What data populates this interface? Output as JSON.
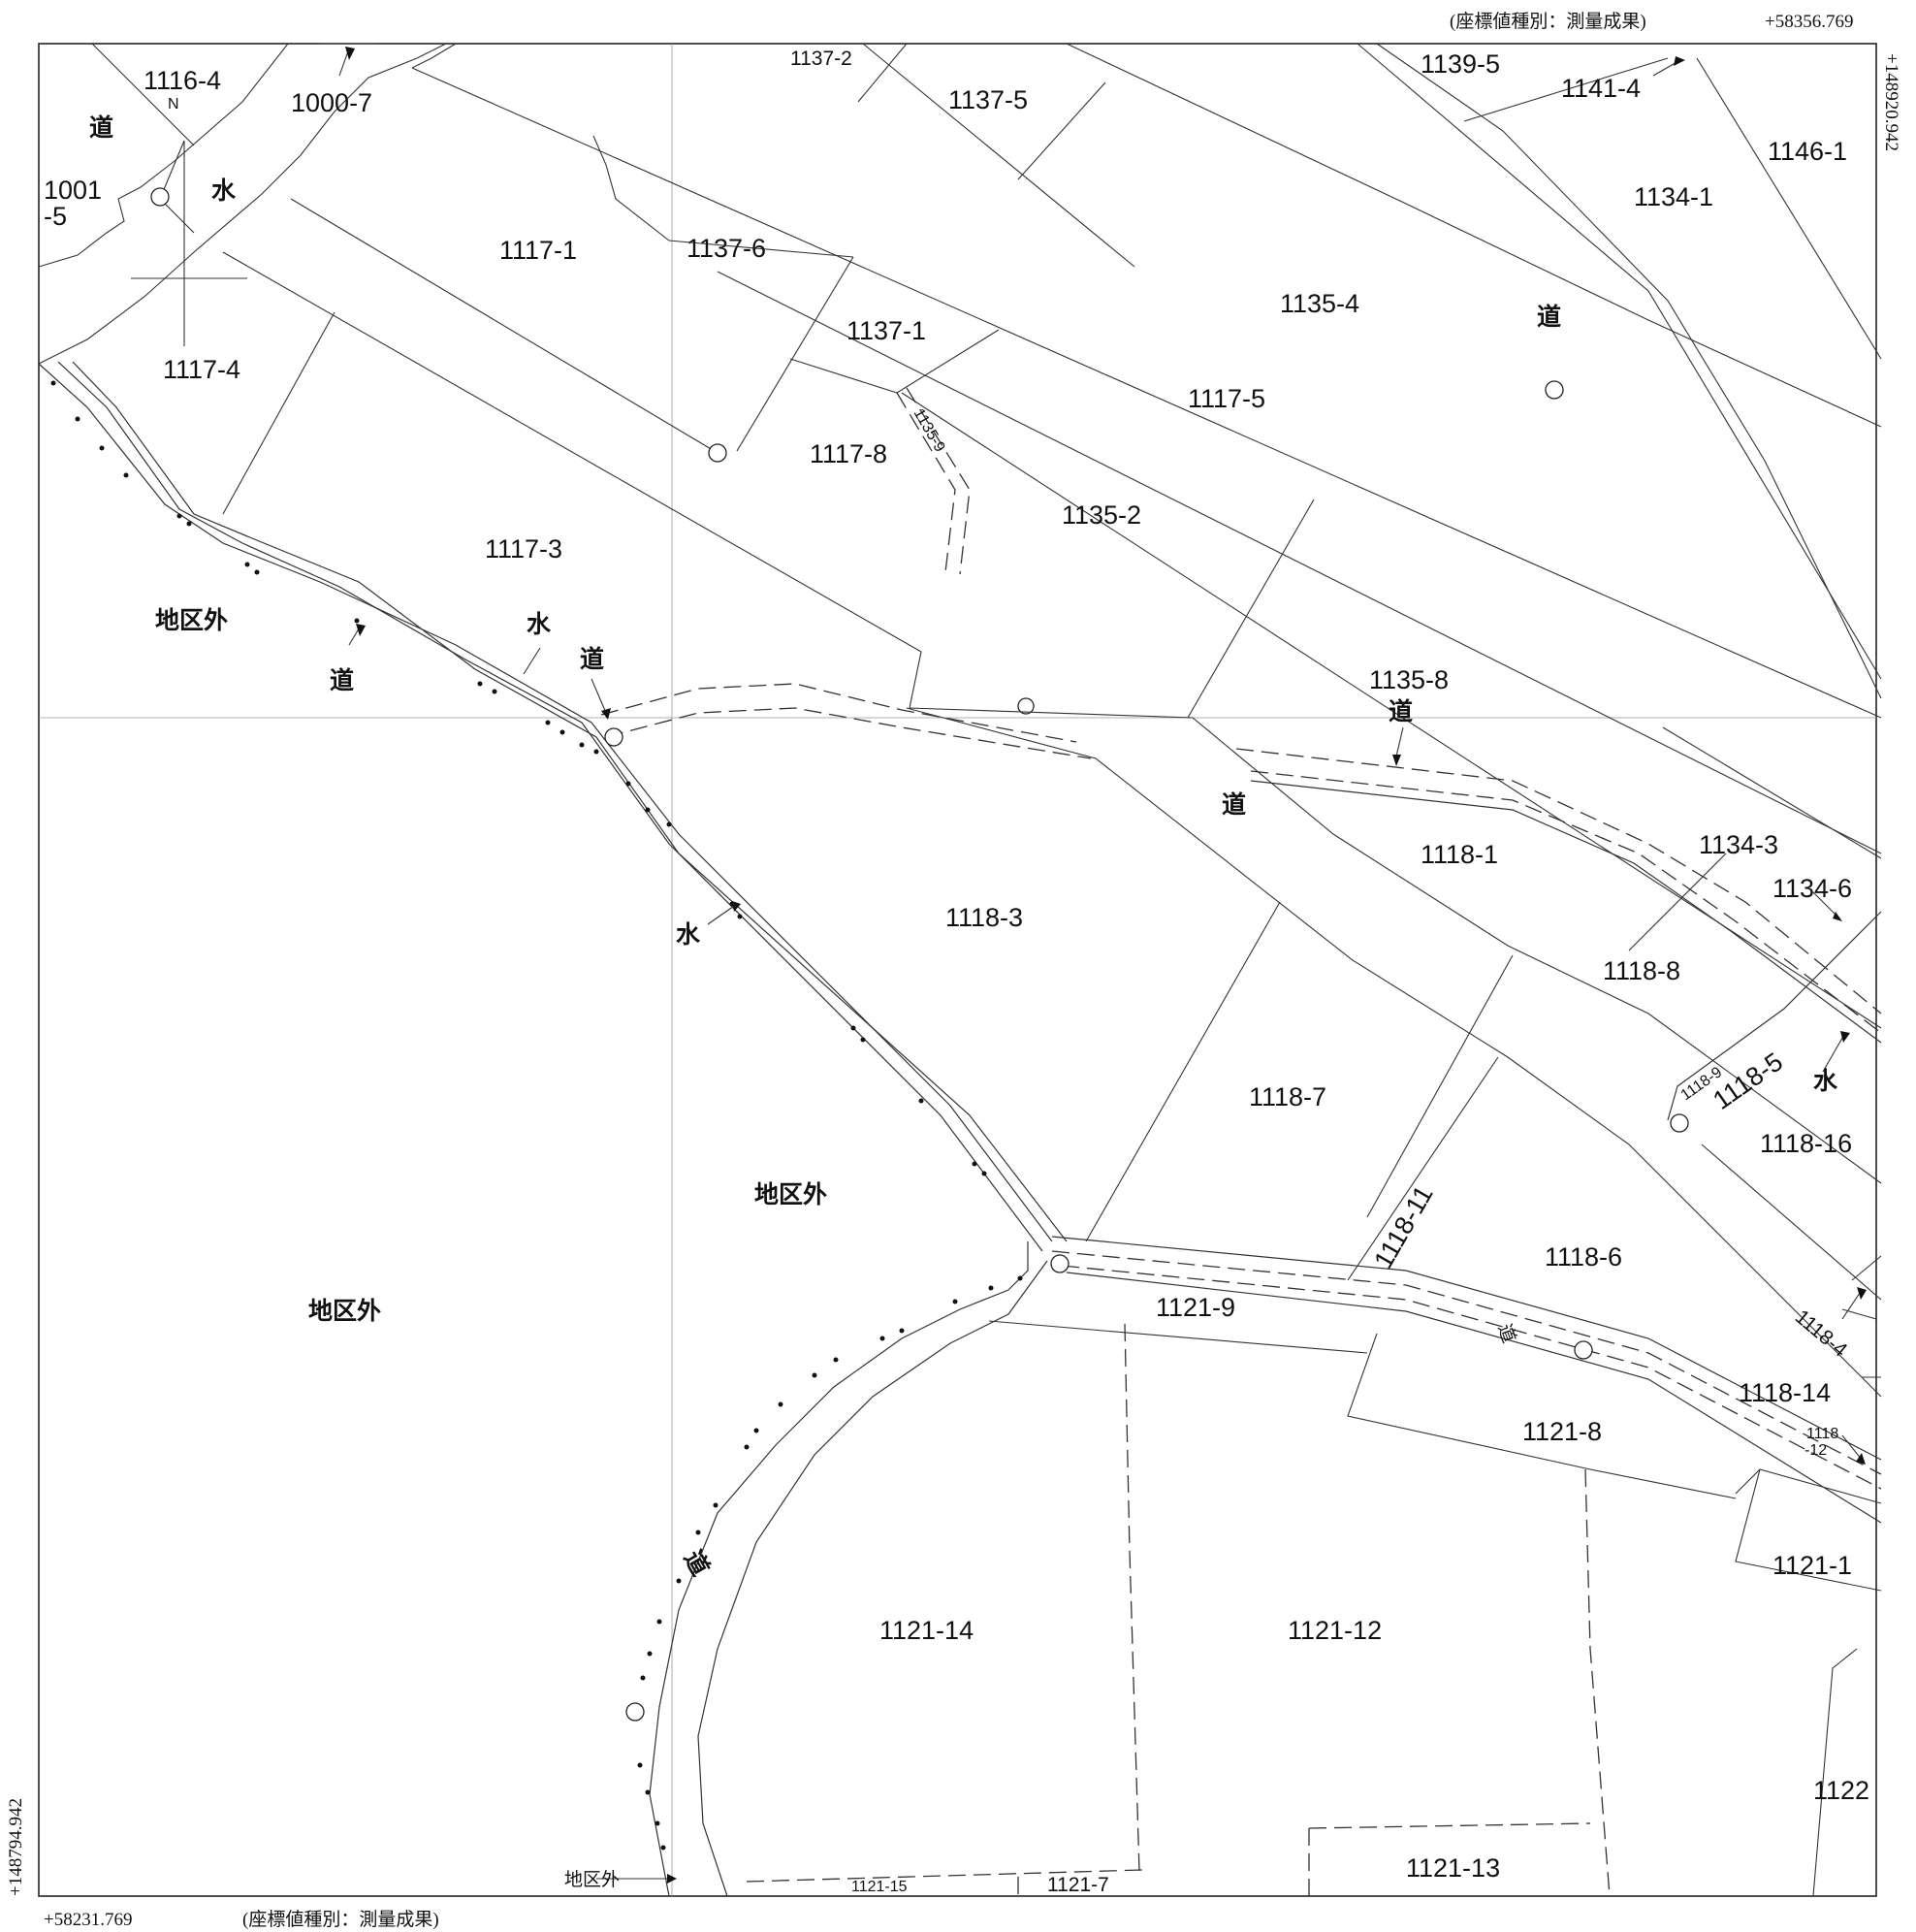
{
  "coords": {
    "top_type": "(座標値種別：測量成果)",
    "top_x": "+58356.769",
    "right_y": "+148920.942",
    "left_y": "+148794.942",
    "bottom_x": "+58231.769",
    "bottom_type": "(座標値種別：測量成果)"
  },
  "north": "N",
  "parcels": {
    "p1116_4": "1116-4",
    "p1000_7": "1000-7",
    "p1001_5a": "1001",
    "p1001_5b": "-5",
    "p1117_1": "1117-1",
    "p1117_4": "1117-4",
    "p1117_3": "1117-3",
    "p1137_2": "1137-2",
    "p1137_5": "1137-5",
    "p1137_6": "1137-6",
    "p1137_1": "1137-1",
    "p1117_8": "1117-8",
    "p1135_9": "1135-9",
    "p1135_2": "1135-2",
    "p1117_5": "1117-5",
    "p1135_4": "1135-4",
    "p1139_5": "1139-5",
    "p1141_4": "1141-4",
    "p1146_1": "1146-1",
    "p1134_1": "1134-1",
    "p1135_8": "1135-8",
    "p1118_1": "1118-1",
    "p1134_3": "1134-3",
    "p1134_6": "1134-6",
    "p1118_8": "1118-8",
    "p1118_3": "1118-3",
    "p1118_7": "1118-7",
    "p1118_9": "1118-9",
    "p1118_5": "1118-5",
    "p1118_16": "1118-16",
    "p1118_11": "1118-11",
    "p1118_6": "1118-6",
    "p1118_4": "1118-4",
    "p1118_14": "1118-14",
    "p1118_12a": "1118",
    "p1118_12b": "-12",
    "p1121_9": "1121-9",
    "p1121_8": "1121-8",
    "p1121_1": "1121-1",
    "p1121_14": "1121-14",
    "p1121_12": "1121-12",
    "p1122": "1122",
    "p1121_13": "1121-13",
    "p1121_15": "1121-15",
    "p1121_7": "1121-7"
  },
  "features": {
    "road": "道",
    "water": "水",
    "outside": "地区外"
  }
}
